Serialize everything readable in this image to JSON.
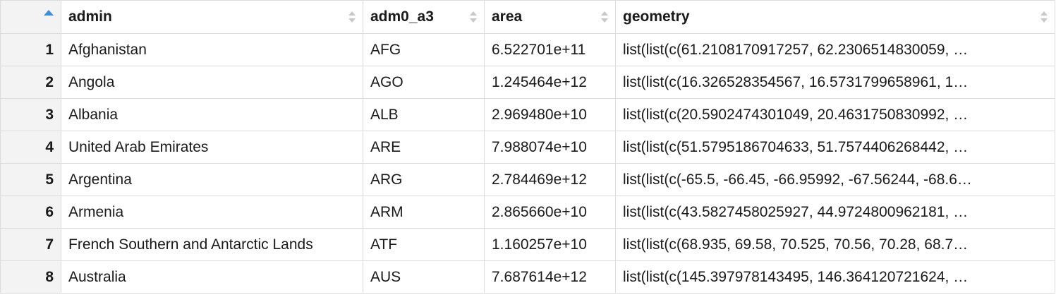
{
  "table": {
    "columns": [
      {
        "key": "admin",
        "label": "admin"
      },
      {
        "key": "adm0_a3",
        "label": "adm0_a3"
      },
      {
        "key": "area",
        "label": "area"
      },
      {
        "key": "geometry",
        "label": "geometry"
      }
    ],
    "sorted_column": "row-index",
    "sort_indicator_color": "#3b8ede",
    "rows": [
      {
        "index": "1",
        "admin": "Afghanistan",
        "adm0_a3": "AFG",
        "area": "6.522701e+11",
        "geometry": "list(list(c(61.2108170917257, 62.2306514830059, …"
      },
      {
        "index": "2",
        "admin": "Angola",
        "adm0_a3": "AGO",
        "area": "1.245464e+12",
        "geometry": "list(list(c(16.326528354567, 16.5731799658961, 1…"
      },
      {
        "index": "3",
        "admin": "Albania",
        "adm0_a3": "ALB",
        "area": "2.969480e+10",
        "geometry": "list(list(c(20.5902474301049, 20.4631750830992, …"
      },
      {
        "index": "4",
        "admin": "United Arab Emirates",
        "adm0_a3": "ARE",
        "area": "7.988074e+10",
        "geometry": "list(list(c(51.5795186704633, 51.7574406268442, …"
      },
      {
        "index": "5",
        "admin": "Argentina",
        "adm0_a3": "ARG",
        "area": "2.784469e+12",
        "geometry": "list(list(c(-65.5, -66.45, -66.95992, -67.56244, -68.6…"
      },
      {
        "index": "6",
        "admin": "Armenia",
        "adm0_a3": "ARM",
        "area": "2.865660e+10",
        "geometry": "list(list(c(43.5827458025927, 44.9724800962181, …"
      },
      {
        "index": "7",
        "admin": "French Southern and Antarctic Lands",
        "adm0_a3": "ATF",
        "area": "1.160257e+10",
        "geometry": "list(list(c(68.935, 69.58, 70.525, 70.56, 70.28, 68.7…"
      },
      {
        "index": "8",
        "admin": "Australia",
        "adm0_a3": "AUS",
        "area": "7.687614e+12",
        "geometry": "list(list(c(145.397978143495, 146.364120721624, …"
      }
    ]
  }
}
